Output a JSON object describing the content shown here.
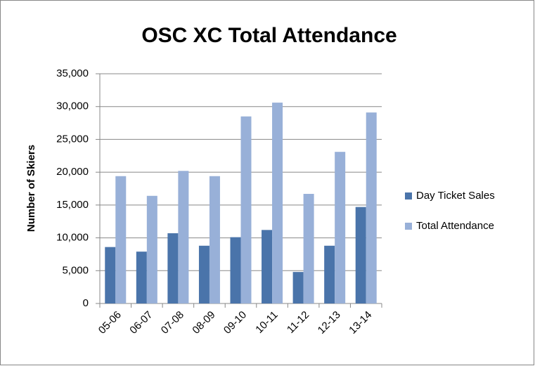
{
  "chart_data": {
    "type": "bar",
    "title": "OSC XC Total Attendance",
    "y_label": "Number of Skiers",
    "categories": [
      "05-06",
      "06-07",
      "07-08",
      "08-09",
      "09-10",
      "10-11",
      "11-12",
      "12-13",
      "13-14"
    ],
    "series": [
      {
        "name": "Day Ticket Sales",
        "color": "#4a74aa",
        "values": [
          8600,
          7900,
          10700,
          8800,
          10100,
          11200,
          4800,
          8800,
          14700
        ]
      },
      {
        "name": "Total Attendance",
        "color": "#98b0d8",
        "values": [
          19400,
          16400,
          20200,
          19400,
          28500,
          30600,
          16700,
          23100,
          29100
        ]
      }
    ],
    "ylim": [
      0,
      35000
    ],
    "yticks": [
      0,
      {
        "value": 5000,
        "label": "5,000"
      },
      {
        "value": 10000,
        "label": "10,000"
      },
      {
        "value": 15000,
        "label": "15,000"
      },
      {
        "value": 20000,
        "label": "20,000"
      },
      {
        "value": 25000,
        "label": "25,000"
      },
      {
        "value": 30000,
        "label": "30,000"
      },
      {
        "value": 35000,
        "label": "35,000"
      }
    ],
    "grid": true,
    "legend": "right"
  }
}
